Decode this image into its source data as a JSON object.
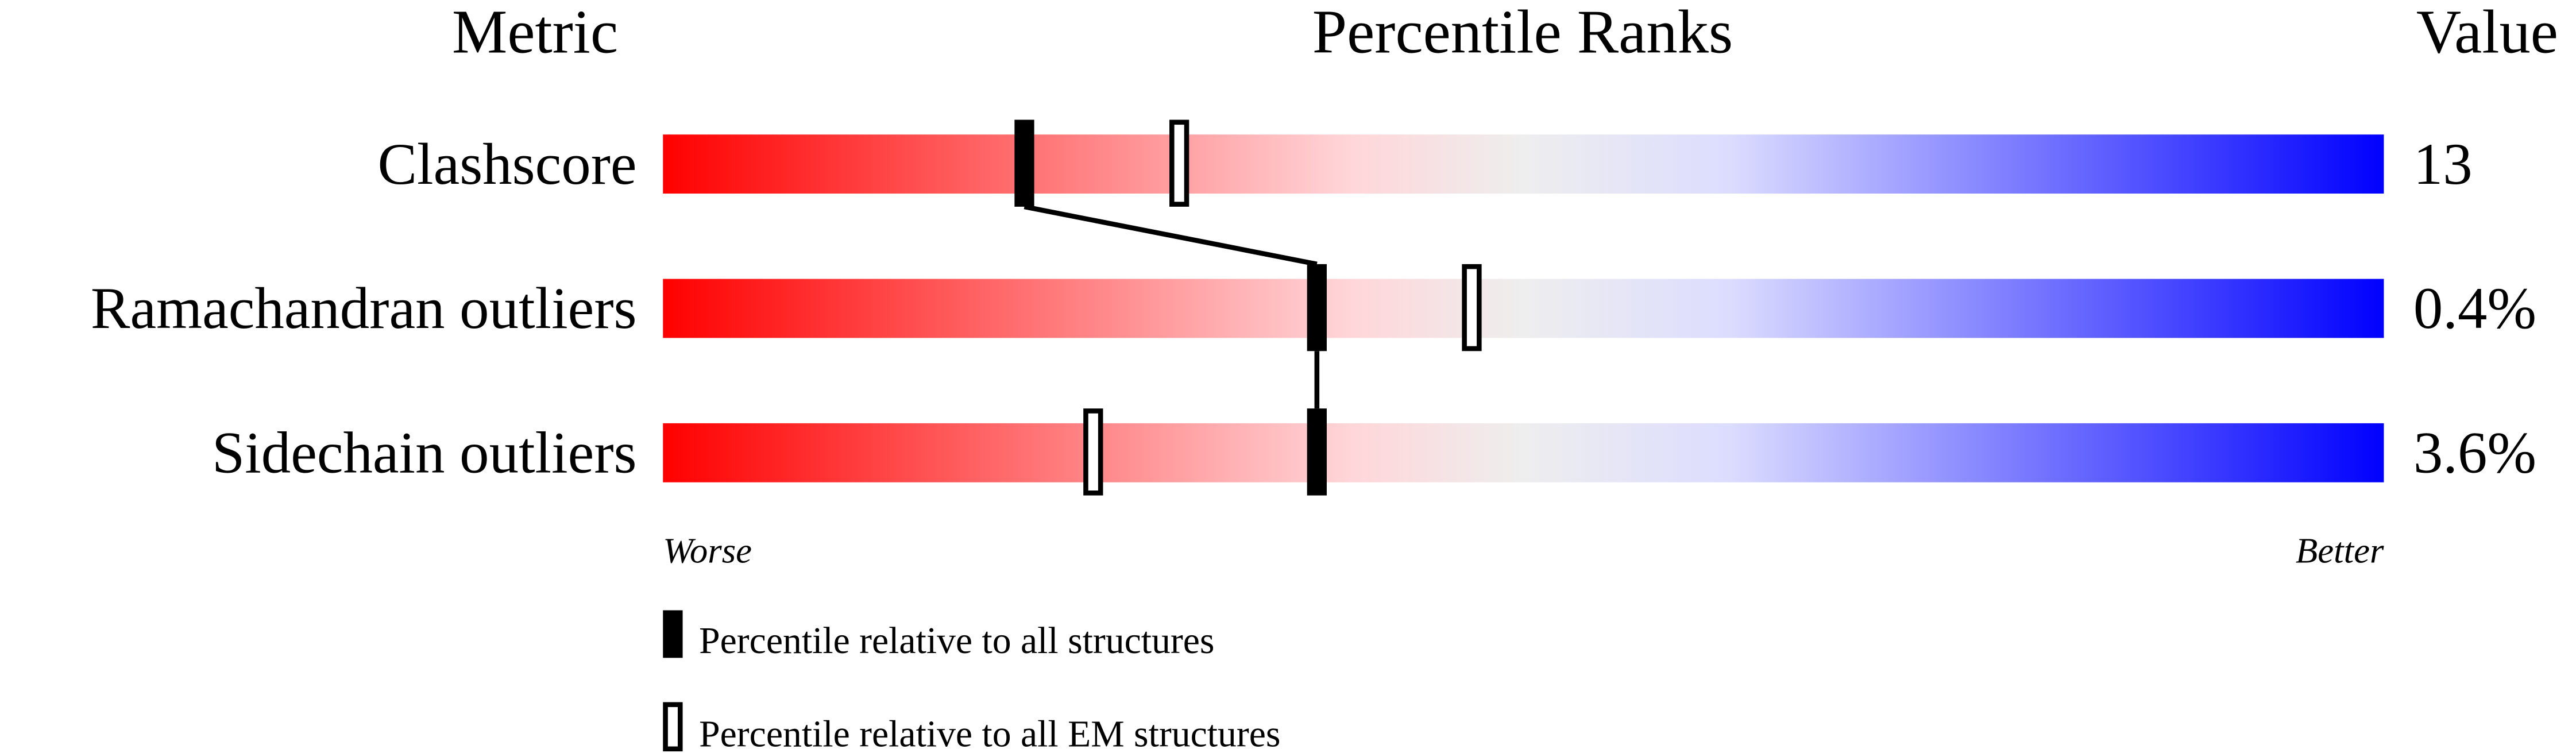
{
  "chart_data": {
    "type": "percentile-slider",
    "headers": {
      "metric": "Metric",
      "ranks": "Percentile Ranks",
      "value": "Value"
    },
    "xlim": [
      0,
      100
    ],
    "axis_labels": {
      "left": "Worse",
      "right": "Better"
    },
    "gradient_colors": [
      "#ff0000",
      "#ffd6d9",
      "#eeeeee",
      "#dcdcff",
      "#0000ff"
    ],
    "rows": [
      {
        "metric": "Clashscore",
        "value": "13",
        "percentile_all": 21,
        "percentile_em": 30
      },
      {
        "metric": "Ramachandran outliers",
        "value": "0.4%",
        "percentile_all": 38,
        "percentile_em": 47
      },
      {
        "metric": "Sidechain outliers",
        "value": "3.6%",
        "percentile_all": 38,
        "percentile_em": 25
      }
    ],
    "legend": [
      {
        "marker": "filled",
        "label": "Percentile relative to all structures"
      },
      {
        "marker": "open",
        "label": "Percentile relative to all EM structures"
      }
    ]
  }
}
